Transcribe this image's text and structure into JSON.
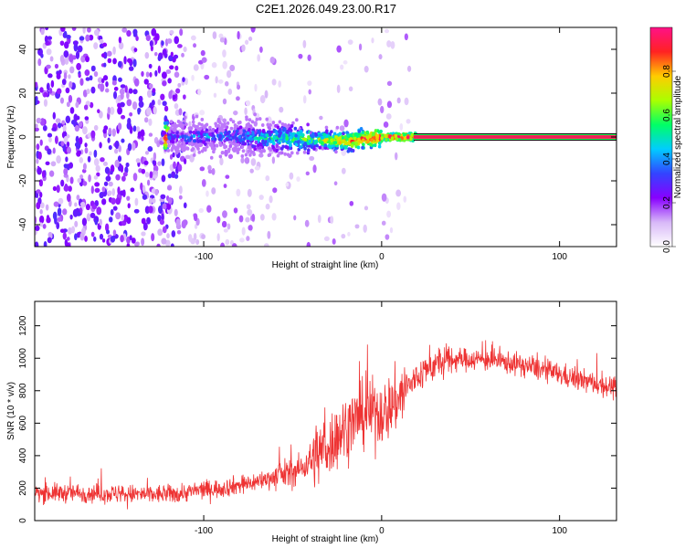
{
  "title": "C2E1.2026.049.23.00.R17",
  "colors": {
    "snr_line": "#ee3333",
    "carrier_line": "#ee2255",
    "colorbar_stops": [
      "#ffffff",
      "#d8b8f8",
      "#8800ff",
      "#3344ff",
      "#00ccff",
      "#00ff66",
      "#aaff00",
      "#ffcc00",
      "#ff2222",
      "#ff1188"
    ]
  },
  "chart_data": [
    {
      "type": "heatmap",
      "title": "",
      "xlabel": "Height of straight line (km)",
      "ylabel": "Frequency (Hz)",
      "xlim": [
        -195,
        132
      ],
      "ylim": [
        -50,
        50
      ],
      "xticks": [
        -100,
        0,
        100
      ],
      "yticks": [
        -40,
        -20,
        0,
        20,
        40
      ],
      "description_ridge": [
        {
          "x": -120,
          "freq": 0,
          "amp": 0.3
        },
        {
          "x": -80,
          "freq": 0,
          "amp": 0.4
        },
        {
          "x": -40,
          "freq": -1,
          "amp": 0.6
        },
        {
          "x": -20,
          "freq": -2,
          "amp": 0.8
        },
        {
          "x": 0,
          "freq": 0,
          "amp": 0.9
        },
        {
          "x": 20,
          "freq": 0,
          "amp": 0.95
        },
        {
          "x": 132,
          "freq": 0,
          "amp": 0.95
        }
      ],
      "colorbar": {
        "label": "Normalized spectral amplitude",
        "range": [
          0,
          1
        ],
        "ticks": [
          "0.0",
          "0.2",
          "0.4",
          "0.6",
          "0.8"
        ]
      }
    },
    {
      "type": "line",
      "title": "",
      "xlabel": "Height of straight line (km)",
      "ylabel": "SNR (10 * v/v)",
      "xlim": [
        -195,
        132
      ],
      "ylim": [
        0,
        1350
      ],
      "xticks": [
        -100,
        0,
        100
      ],
      "yticks": [
        0,
        200,
        400,
        600,
        800,
        1000,
        1200
      ],
      "series": [
        {
          "name": "SNR",
          "x": [
            -195,
            -170,
            -150,
            -130,
            -115,
            -100,
            -90,
            -80,
            -70,
            -60,
            -50,
            -45,
            -40,
            -35,
            -30,
            -25,
            -20,
            -15,
            -10,
            -5,
            0,
            5,
            10,
            15,
            20,
            25,
            30,
            40,
            50,
            60,
            70,
            80,
            90,
            100,
            110,
            120,
            132
          ],
          "values": [
            170,
            170,
            165,
            160,
            165,
            190,
            200,
            220,
            240,
            270,
            300,
            320,
            380,
            420,
            460,
            520,
            580,
            620,
            650,
            680,
            660,
            700,
            760,
            830,
            880,
            930,
            960,
            990,
            995,
            990,
            975,
            955,
            930,
            900,
            870,
            845,
            815
          ]
        }
      ]
    }
  ]
}
